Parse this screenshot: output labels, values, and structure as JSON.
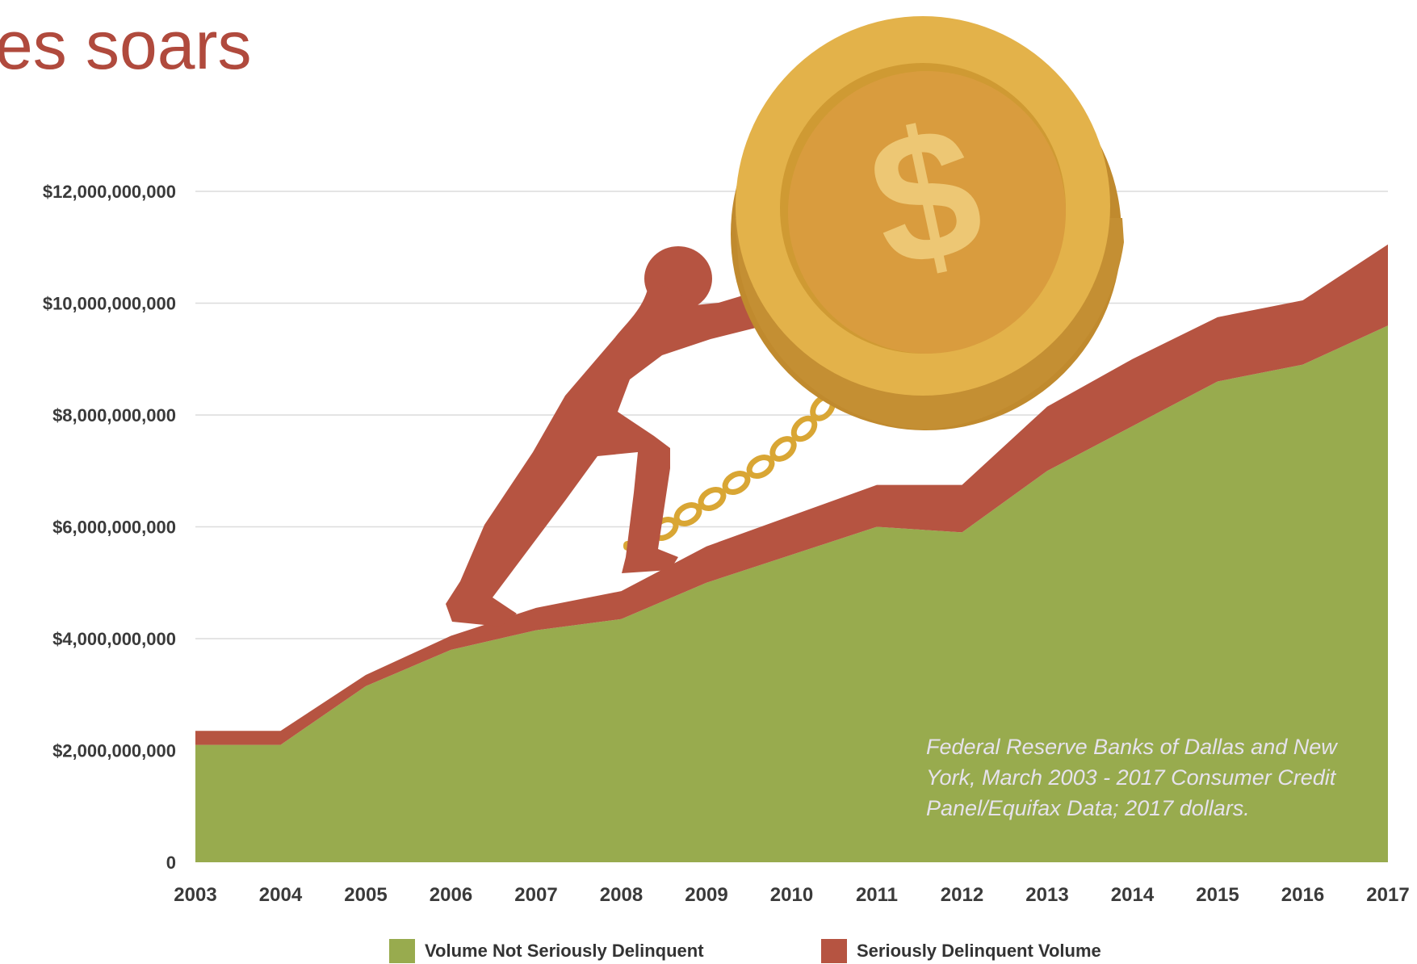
{
  "page": {
    "title": "es soars"
  },
  "chart_data": {
    "type": "area",
    "stacked": true,
    "x": [
      2003,
      2004,
      2005,
      2006,
      2007,
      2008,
      2009,
      2010,
      2011,
      2012,
      2013,
      2014,
      2015,
      2016,
      2017
    ],
    "x_tick_labels": [
      "2003",
      "2004",
      "2005",
      "2006",
      "2007",
      "2008",
      "2009",
      "2010",
      "2011",
      "2012",
      "2013",
      "2014",
      "2015",
      "2016",
      "2017"
    ],
    "y_tick_values": [
      0,
      2000000000,
      4000000000,
      6000000000,
      8000000000,
      10000000000,
      12000000000
    ],
    "y_tick_labels": [
      "0",
      "$2,000,000,000",
      "$4,000,000,000",
      "$6,000,000,000",
      "$8,000,000,000",
      "$10,000,000,000",
      "$12,000,000,000"
    ],
    "ylim": [
      0,
      12000000000
    ],
    "grid": true,
    "legend_position": "bottom",
    "series": [
      {
        "name": "Volume Not Seriously Delinquent",
        "color": "#98ab4e",
        "values": [
          2100000000,
          2100000000,
          3150000000,
          3800000000,
          4150000000,
          4350000000,
          5000000000,
          5500000000,
          6000000000,
          5900000000,
          7000000000,
          7800000000,
          8600000000,
          8900000000,
          9600000000
        ]
      },
      {
        "name": "Seriously Delinquent Volume",
        "color": "#b65441",
        "values": [
          250000000,
          250000000,
          200000000,
          250000000,
          400000000,
          500000000,
          650000000,
          700000000,
          750000000,
          850000000,
          1150000000,
          1200000000,
          1150000000,
          1150000000,
          1450000000
        ]
      }
    ]
  },
  "source_note": "Federal Reserve Banks of Dallas and New York, March 2003 - 2017 Consumer Credit Panel/Equifax Data; 2017 dollars.",
  "illustration": {
    "icon": "sisyphus-pushing-dollar-coin-illustration",
    "coin_symbol": "$",
    "colors": {
      "figure": "#b65441",
      "coin": "#e3b24a",
      "coin_face": "#d99c3e",
      "chain": "#d9a634"
    }
  },
  "legend": [
    {
      "label": "Volume Not Seriously Delinquent",
      "color": "#98ab4e"
    },
    {
      "label": "Seriously Delinquent Volume",
      "color": "#b65441"
    }
  ]
}
